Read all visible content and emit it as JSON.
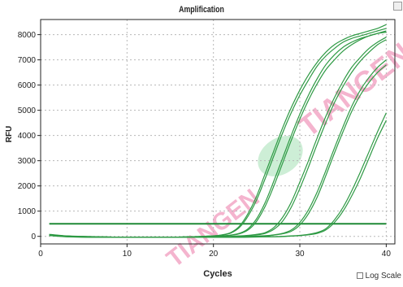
{
  "chart_data": {
    "type": "line",
    "title": "Amplification",
    "xlabel": "Cycles",
    "ylabel": "RFU",
    "xlim": [
      0,
      41
    ],
    "ylim": [
      -300,
      8600
    ],
    "x_ticks": [
      0,
      10,
      20,
      30,
      40
    ],
    "y_ticks": [
      0,
      1000,
      2000,
      3000,
      4000,
      5000,
      6000,
      7000,
      8000
    ],
    "grid": true,
    "legend": "none",
    "threshold": 500,
    "series": [
      {
        "x": [
          1,
          3,
          5,
          7,
          10,
          13,
          16,
          18,
          20,
          21,
          22,
          23,
          24,
          25,
          26,
          27,
          28,
          29,
          30,
          31,
          32,
          33,
          34,
          35,
          36,
          37,
          38,
          39,
          40
        ],
        "values": [
          80,
          20,
          0,
          -20,
          -40,
          -40,
          -30,
          -10,
          20,
          60,
          150,
          400,
          900,
          1600,
          2500,
          3400,
          4300,
          5100,
          5800,
          6400,
          6900,
          7300,
          7600,
          7800,
          7950,
          8050,
          8150,
          8250,
          8400
        ]
      },
      {
        "x": [
          1,
          3,
          5,
          7,
          10,
          13,
          16,
          18,
          20,
          21,
          22,
          23,
          24,
          25,
          26,
          27,
          28,
          29,
          30,
          31,
          32,
          33,
          34,
          35,
          36,
          37,
          38,
          39,
          40
        ],
        "values": [
          70,
          10,
          -10,
          -20,
          -40,
          -40,
          -30,
          -10,
          20,
          50,
          130,
          350,
          800,
          1450,
          2300,
          3200,
          4100,
          4900,
          5600,
          6200,
          6750,
          7150,
          7450,
          7700,
          7850,
          7950,
          8050,
          8150,
          8250
        ]
      },
      {
        "x": [
          1,
          3,
          5,
          7,
          10,
          13,
          16,
          18,
          20,
          21,
          22,
          23,
          24,
          25,
          26,
          27,
          28,
          29,
          30,
          31,
          32,
          33,
          34,
          35,
          36,
          37,
          38,
          39,
          40
        ],
        "values": [
          60,
          10,
          -10,
          -30,
          -40,
          -40,
          -30,
          -20,
          0,
          20,
          50,
          120,
          300,
          700,
          1350,
          2200,
          3100,
          4000,
          4850,
          5600,
          6250,
          6800,
          7200,
          7500,
          7700,
          7850,
          7950,
          8050,
          8150
        ]
      },
      {
        "x": [
          1,
          3,
          5,
          7,
          10,
          13,
          16,
          18,
          20,
          21,
          22,
          23,
          24,
          25,
          26,
          27,
          28,
          29,
          30,
          31,
          32,
          33,
          34,
          35,
          36,
          37,
          38,
          39,
          40
        ],
        "values": [
          50,
          0,
          -20,
          -30,
          -40,
          -40,
          -30,
          -20,
          0,
          10,
          40,
          100,
          250,
          600,
          1200,
          2000,
          2900,
          3800,
          4650,
          5400,
          6050,
          6600,
          7000,
          7350,
          7600,
          7800,
          7950,
          8050,
          8100
        ]
      },
      {
        "x": [
          1,
          3,
          5,
          7,
          10,
          13,
          16,
          18,
          20,
          22,
          24,
          25,
          26,
          27,
          28,
          29,
          30,
          31,
          32,
          33,
          34,
          35,
          36,
          37,
          38,
          39,
          40
        ],
        "values": [
          60,
          10,
          -10,
          -20,
          -40,
          -40,
          -40,
          -30,
          -20,
          0,
          40,
          80,
          150,
          350,
          750,
          1350,
          2150,
          3000,
          3900,
          4750,
          5500,
          6150,
          6700,
          7100,
          7450,
          7700,
          7900
        ]
      },
      {
        "x": [
          1,
          3,
          5,
          7,
          10,
          13,
          16,
          18,
          20,
          22,
          24,
          25,
          26,
          27,
          28,
          29,
          30,
          31,
          32,
          33,
          34,
          35,
          36,
          37,
          38,
          39,
          40
        ],
        "values": [
          50,
          0,
          -20,
          -30,
          -40,
          -40,
          -40,
          -30,
          -20,
          -10,
          30,
          60,
          120,
          280,
          600,
          1150,
          1900,
          2750,
          3650,
          4500,
          5300,
          5950,
          6500,
          6950,
          7300,
          7600,
          7800
        ]
      },
      {
        "x": [
          1,
          3,
          5,
          7,
          10,
          13,
          16,
          18,
          20,
          22,
          24,
          26,
          27,
          28,
          29,
          30,
          31,
          32,
          33,
          34,
          35,
          36,
          37,
          38,
          39,
          40
        ],
        "values": [
          50,
          0,
          -20,
          -30,
          -40,
          -40,
          -40,
          -40,
          -30,
          -20,
          0,
          30,
          60,
          120,
          250,
          550,
          1050,
          1750,
          2600,
          3500,
          4350,
          5150,
          5800,
          6300,
          6700,
          7000
        ]
      },
      {
        "x": [
          1,
          3,
          5,
          7,
          10,
          13,
          16,
          18,
          20,
          22,
          24,
          26,
          27,
          28,
          29,
          30,
          31,
          32,
          33,
          34,
          35,
          36,
          37,
          38,
          39,
          40
        ],
        "values": [
          40,
          -10,
          -30,
          -40,
          -40,
          -40,
          -40,
          -40,
          -30,
          -20,
          -10,
          20,
          50,
          100,
          200,
          450,
          900,
          1550,
          2400,
          3300,
          4150,
          4950,
          5600,
          6100,
          6500,
          6800
        ]
      },
      {
        "x": [
          1,
          3,
          5,
          7,
          10,
          13,
          16,
          18,
          20,
          22,
          24,
          26,
          28,
          30,
          31,
          32,
          33,
          34,
          35,
          36,
          37,
          38,
          39,
          40
        ],
        "values": [
          40,
          -10,
          -30,
          -40,
          -40,
          -40,
          -40,
          -40,
          -40,
          -40,
          -30,
          -20,
          0,
          40,
          80,
          150,
          300,
          650,
          1150,
          1800,
          2550,
          3350,
          4150,
          4900
        ]
      },
      {
        "x": [
          1,
          3,
          5,
          7,
          10,
          13,
          16,
          18,
          20,
          22,
          24,
          26,
          28,
          30,
          31,
          32,
          33,
          34,
          35,
          36,
          37,
          38,
          39,
          40
        ],
        "values": [
          30,
          -20,
          -30,
          -40,
          -40,
          -40,
          -40,
          -40,
          -40,
          -40,
          -30,
          -20,
          -10,
          30,
          60,
          120,
          250,
          550,
          1000,
          1600,
          2300,
          3100,
          3900,
          4600
        ]
      }
    ]
  },
  "ui": {
    "log_scale_label": "Log Scale",
    "log_scale_checked": false,
    "watermark": "TIANGEN",
    "colors": {
      "curve": "#2e9a44",
      "threshold": "#1f8a36",
      "grid": "#b8b8b8",
      "axis": "#222222",
      "watermark": "#f3a8c6",
      "watermark_leaf": "#cdeed6"
    }
  }
}
